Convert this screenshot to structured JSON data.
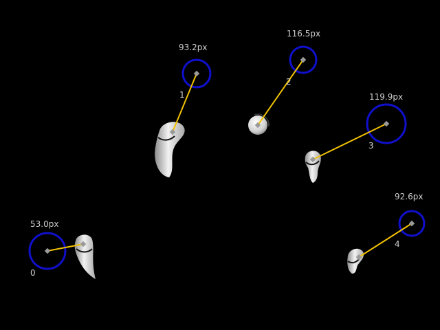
{
  "scene": {
    "background": "#000000",
    "colors": {
      "target_ring": "#1010cc",
      "connector": "#f2c200",
      "marker": "#9a9a9a",
      "label": "#cfcfcf",
      "object": "#e6e6e6"
    },
    "items": [
      {
        "index": "0",
        "distance": "53.0px"
      },
      {
        "index": "1",
        "distance": "93.2px"
      },
      {
        "index": "2",
        "distance": "116.5px"
      },
      {
        "index": "3",
        "distance": "119.9px"
      },
      {
        "index": "4",
        "distance": "92.6px"
      }
    ]
  }
}
